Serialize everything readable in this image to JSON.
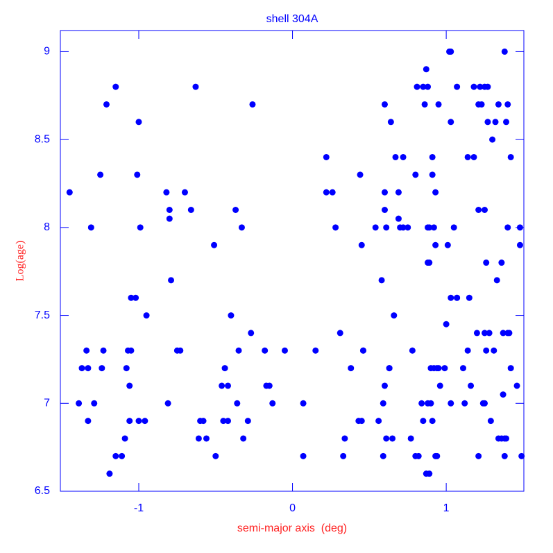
{
  "chart_data": {
    "type": "scatter",
    "title": "shell 304A",
    "x_label": "semi-major axis  (deg)",
    "y_label": "Log(age)",
    "color": "#0000ff",
    "xlim": [
      -1.51,
      1.505
    ],
    "ylim": [
      6.5,
      9.12
    ],
    "xticks": [
      -1,
      0,
      1
    ],
    "yticks": [
      6.5,
      7,
      7.5,
      8,
      8.5,
      9
    ],
    "x": [
      -1.45,
      -1.39,
      -1.37,
      -1.34,
      -1.33,
      -1.33,
      -1.31,
      -1.29,
      -1.25,
      -1.24,
      -1.23,
      -1.21,
      -1.19,
      -1.15,
      -1.15,
      -1.11,
      -1.09,
      -1.08,
      -1.07,
      -1.06,
      -1.06,
      -1.05,
      -1.05,
      -1.02,
      -1.01,
      -1.0,
      -1.0,
      -0.99,
      -0.96,
      -0.95,
      -0.82,
      -0.81,
      -0.8,
      -0.8,
      -0.79,
      -0.75,
      -0.73,
      -0.7,
      -0.66,
      -0.63,
      -0.61,
      -0.6,
      -0.58,
      -0.56,
      -0.51,
      -0.5,
      -0.46,
      -0.45,
      -0.44,
      -0.42,
      -0.42,
      -0.4,
      -0.37,
      -0.36,
      -0.35,
      -0.33,
      -0.32,
      -0.29,
      -0.27,
      -0.26,
      -0.18,
      -0.17,
      -0.15,
      -0.13,
      -0.05,
      0.07,
      0.07,
      0.15,
      0.22,
      0.22,
      0.26,
      0.28,
      0.31,
      0.33,
      0.34,
      0.38,
      0.43,
      0.44,
      0.45,
      0.45,
      0.46,
      0.46,
      0.54,
      0.56,
      0.58,
      0.59,
      0.59,
      0.6,
      0.6,
      0.6,
      0.6,
      0.61,
      0.61,
      0.63,
      0.63,
      0.64,
      0.65,
      0.66,
      0.67,
      0.69,
      0.69,
      0.7,
      0.72,
      0.72,
      0.75,
      0.77,
      0.78,
      0.8,
      0.8,
      0.81,
      0.82,
      0.84,
      0.85,
      0.85,
      0.86,
      0.87,
      0.87,
      0.88,
      0.88,
      0.88,
      0.88,
      0.89,
      0.89,
      0.89,
      0.9,
      0.9,
      0.91,
      0.91,
      0.91,
      0.92,
      0.92,
      0.93,
      0.93,
      0.93,
      0.94,
      0.94,
      0.95,
      0.95,
      0.96,
      0.99,
      1.0,
      1.01,
      1.02,
      1.03,
      1.03,
      1.03,
      1.03,
      1.05,
      1.07,
      1.07,
      1.07,
      1.11,
      1.12,
      1.14,
      1.14,
      1.15,
      1.16,
      1.18,
      1.18,
      1.2,
      1.21,
      1.21,
      1.21,
      1.22,
      1.23,
      1.24,
      1.25,
      1.25,
      1.25,
      1.25,
      1.26,
      1.26,
      1.27,
      1.27,
      1.28,
      1.29,
      1.3,
      1.31,
      1.32,
      1.33,
      1.34,
      1.34,
      1.36,
      1.36,
      1.37,
      1.37,
      1.38,
      1.38,
      1.38,
      1.39,
      1.39,
      1.4,
      1.4,
      1.4,
      1.41,
      1.42,
      1.42,
      1.46,
      1.48,
      1.48,
      1.49
    ],
    "y": [
      8.2,
      7.0,
      7.2,
      7.3,
      7.2,
      6.9,
      8.0,
      7.0,
      8.3,
      7.2,
      7.3,
      8.7,
      6.6,
      6.7,
      8.8,
      6.7,
      6.8,
      7.2,
      7.3,
      7.1,
      6.9,
      7.3,
      7.6,
      7.6,
      8.3,
      8.6,
      6.9,
      8.0,
      6.9,
      7.5,
      8.2,
      7.0,
      8.05,
      8.1,
      7.7,
      7.3,
      7.3,
      8.2,
      8.1,
      8.8,
      6.8,
      6.9,
      6.9,
      6.8,
      7.9,
      6.7,
      7.1,
      6.9,
      7.2,
      6.9,
      7.1,
      7.5,
      8.1,
      7.0,
      7.3,
      8.0,
      6.8,
      6.9,
      7.4,
      8.7,
      7.3,
      7.1,
      7.1,
      7.0,
      7.3,
      7.0,
      6.7,
      7.3,
      8.4,
      8.2,
      8.2,
      8.0,
      7.4,
      6.7,
      6.8,
      7.2,
      6.9,
      8.3,
      6.9,
      7.9,
      7.3,
      7.3,
      8.0,
      6.9,
      7.7,
      7.0,
      6.7,
      8.2,
      7.1,
      8.7,
      8.1,
      6.8,
      8.0,
      7.2,
      7.2,
      8.6,
      6.8,
      7.5,
      8.4,
      8.2,
      8.05,
      8.0,
      8.4,
      8.0,
      8.0,
      6.8,
      7.3,
      8.3,
      6.7,
      8.8,
      6.7,
      7.0,
      8.8,
      6.9,
      8.7,
      8.9,
      6.6,
      8.8,
      8.0,
      7.8,
      7.0,
      6.6,
      7.8,
      8.0,
      7.2,
      7.0,
      6.9,
      8.3,
      8.4,
      8.0,
      7.2,
      8.2,
      6.7,
      7.9,
      7.2,
      6.7,
      8.7,
      7.2,
      7.1,
      7.2,
      7.45,
      7.9,
      9.0,
      9.0,
      8.6,
      7.6,
      7.0,
      8.0,
      7.6,
      8.8,
      7.6,
      7.2,
      7.0,
      8.4,
      7.3,
      7.6,
      7.1,
      8.8,
      8.4,
      7.4,
      8.7,
      6.7,
      8.1,
      8.8,
      8.7,
      7.0,
      7.0,
      8.8,
      8.1,
      7.4,
      7.3,
      7.8,
      8.6,
      8.8,
      7.4,
      6.9,
      8.5,
      7.3,
      8.6,
      7.7,
      6.8,
      8.7,
      6.8,
      7.8,
      7.05,
      7.4,
      9.0,
      6.7,
      6.8,
      6.8,
      8.6,
      8.0,
      8.7,
      7.4,
      7.4,
      8.4,
      7.2,
      7.1,
      8.0,
      7.9,
      6.7
    ]
  }
}
